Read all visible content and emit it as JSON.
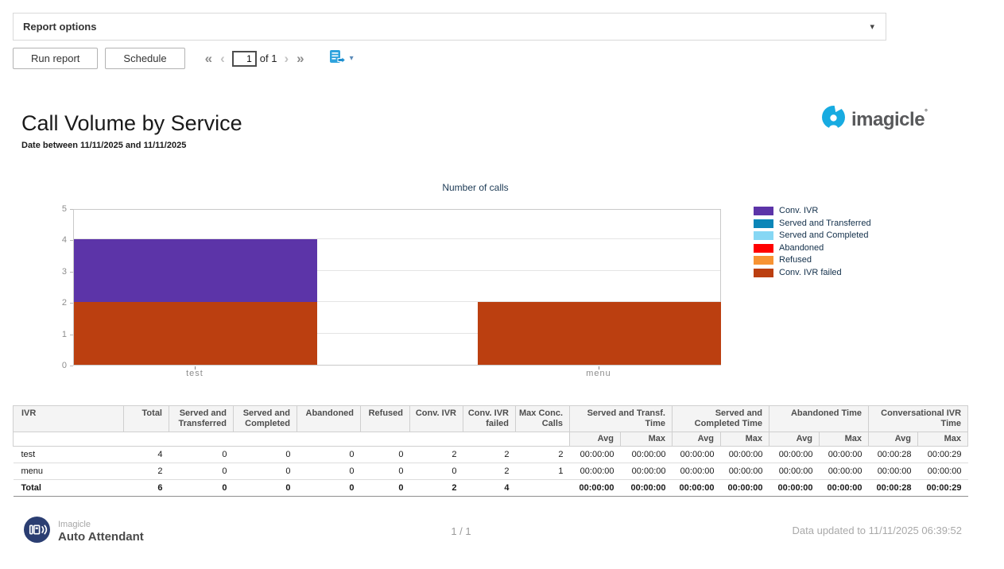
{
  "options_bar": {
    "label": "Report options"
  },
  "toolbar": {
    "run_report": "Run report",
    "schedule": "Schedule",
    "page_value": "1",
    "page_of": "of 1"
  },
  "icons": {
    "first_page": "«",
    "prev_page": "‹",
    "next_page": "›",
    "last_page": "»",
    "caret_down": "▾",
    "export_caret": "▾"
  },
  "header": {
    "title": "Call Volume by Service",
    "subtitle": "Date between 11/11/2025 and 11/11/2025",
    "brand": "imagicle",
    "brand_mark": "°"
  },
  "chart_data": {
    "type": "bar",
    "stacked": true,
    "title": "Number of calls",
    "categories": [
      "test",
      "menu"
    ],
    "series": [
      {
        "name": "Conv. IVR",
        "color": "#5c34a8",
        "values": [
          2,
          0
        ]
      },
      {
        "name": "Served and Transferred",
        "color": "#0b86b8",
        "values": [
          0,
          0
        ]
      },
      {
        "name": "Served and Completed",
        "color": "#86d7f4",
        "values": [
          0,
          0
        ]
      },
      {
        "name": "Abandoned",
        "color": "#ff0000",
        "values": [
          0,
          0
        ]
      },
      {
        "name": "Refused",
        "color": "#f79333",
        "values": [
          0,
          0
        ]
      },
      {
        "name": "Conv. IVR failed",
        "color": "#bb3f10",
        "values": [
          2,
          2
        ]
      }
    ],
    "ylim": [
      0,
      5
    ],
    "yticks": [
      0,
      1,
      2,
      3,
      4,
      5
    ],
    "grid": true,
    "legend_position": "right"
  },
  "table": {
    "simple_columns": [
      "IVR",
      "Total",
      "Served and Transferred",
      "Served and Completed",
      "Abandoned",
      "Refused",
      "Conv. IVR",
      "Conv. IVR failed",
      "Max Conc. Calls"
    ],
    "time_groups": [
      "Served and Transf. Time",
      "Served and Completed Time",
      "Abandoned Time",
      "Conversational IVR Time"
    ],
    "sub_headers": [
      "Avg",
      "Max"
    ],
    "rows": [
      [
        "test",
        "4",
        "0",
        "0",
        "0",
        "0",
        "2",
        "2",
        "2",
        "00:00:00",
        "00:00:00",
        "00:00:00",
        "00:00:00",
        "00:00:00",
        "00:00:00",
        "00:00:28",
        "00:00:29"
      ],
      [
        "menu",
        "2",
        "0",
        "0",
        "0",
        "0",
        "0",
        "2",
        "1",
        "00:00:00",
        "00:00:00",
        "00:00:00",
        "00:00:00",
        "00:00:00",
        "00:00:00",
        "00:00:00",
        "00:00:00"
      ]
    ],
    "total_row": [
      "Total",
      "6",
      "0",
      "0",
      "0",
      "0",
      "2",
      "4",
      "",
      "00:00:00",
      "00:00:00",
      "00:00:00",
      "00:00:00",
      "00:00:00",
      "00:00:00",
      "00:00:28",
      "00:00:29"
    ]
  },
  "footer": {
    "brand_top": "Imagicle",
    "brand_bottom": "Auto Attendant",
    "page_indicator": "1 / 1",
    "updated": "Data updated to 11/11/2025 06:39:52"
  }
}
